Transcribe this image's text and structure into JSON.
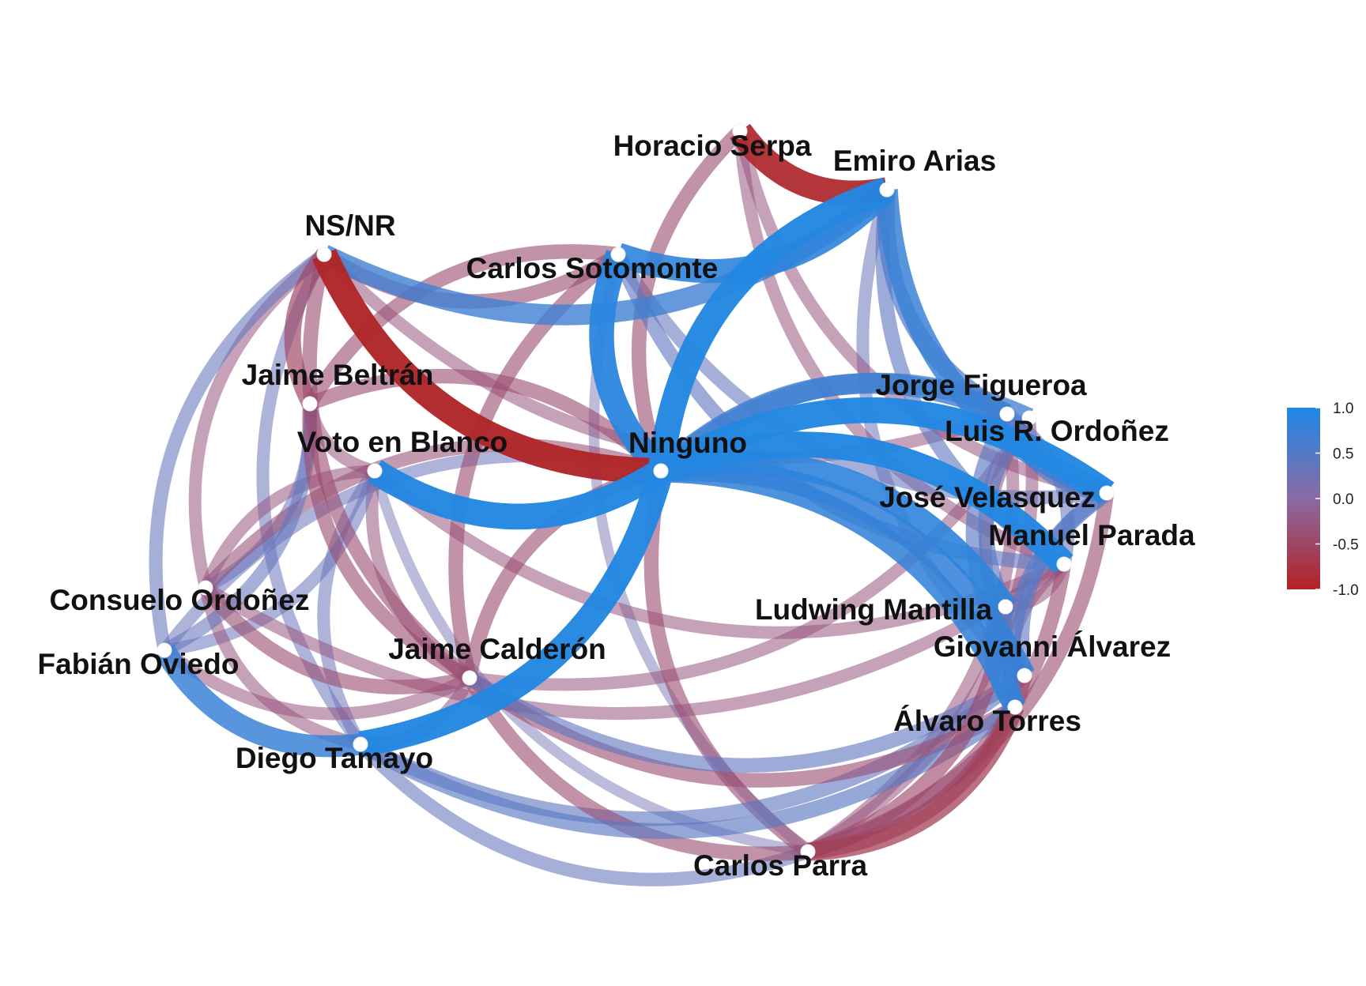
{
  "chart_data": {
    "type": "network",
    "title": "",
    "nodes": [
      {
        "id": "ninguno",
        "label": "Ninguno"
      },
      {
        "id": "nsnr",
        "label": "NS/NR"
      },
      {
        "id": "voto_blanco",
        "label": "Voto en Blanco"
      },
      {
        "id": "jaime_beltran",
        "label": "Jaime Beltrán"
      },
      {
        "id": "carlos_sotomonte",
        "label": "Carlos Sotomonte"
      },
      {
        "id": "horacio_serpa",
        "label": "Horacio Serpa"
      },
      {
        "id": "emiro_arias",
        "label": "Emiro Arias"
      },
      {
        "id": "jorge_figueroa",
        "label": "Jorge Figueroa"
      },
      {
        "id": "luis_ordonez",
        "label": "Luis R. Ordoñez"
      },
      {
        "id": "jose_velasquez",
        "label": "José Velasquez"
      },
      {
        "id": "manuel_parada",
        "label": "Manuel Parada"
      },
      {
        "id": "ludwing_mantilla",
        "label": "Ludwing Mantilla"
      },
      {
        "id": "giovanni_alvarez",
        "label": "Giovanni Álvarez"
      },
      {
        "id": "alvaro_torres",
        "label": "Álvaro Torres"
      },
      {
        "id": "carlos_parra",
        "label": "Carlos Parra"
      },
      {
        "id": "diego_tamayo",
        "label": "Diego Tamayo"
      },
      {
        "id": "jaime_calderon",
        "label": "Jaime Calderón"
      },
      {
        "id": "consuelo_ordonez",
        "label": "Consuelo Ordoñez"
      },
      {
        "id": "fabian_oviedo",
        "label": "Fabián Oviedo"
      }
    ],
    "edges": [
      {
        "source": "nsnr",
        "target": "ninguno",
        "value": -0.95
      },
      {
        "source": "voto_blanco",
        "target": "ninguno",
        "value": 0.95
      },
      {
        "source": "diego_tamayo",
        "target": "ninguno",
        "value": 0.95
      },
      {
        "source": "carlos_sotomonte",
        "target": "ninguno",
        "value": 0.9
      },
      {
        "source": "emiro_arias",
        "target": "ninguno",
        "value": 0.95
      },
      {
        "source": "jose_velasquez",
        "target": "ninguno",
        "value": 0.95
      },
      {
        "source": "manuel_parada",
        "target": "ninguno",
        "value": 0.95
      },
      {
        "source": "ludwing_mantilla",
        "target": "ninguno",
        "value": 0.85
      },
      {
        "source": "giovanni_alvarez",
        "target": "ninguno",
        "value": 0.8
      },
      {
        "source": "alvaro_torres",
        "target": "ninguno",
        "value": 0.8
      },
      {
        "source": "jorge_figueroa",
        "target": "ninguno",
        "value": 0.7
      },
      {
        "source": "luis_ordonez",
        "target": "ninguno",
        "value": 0.65
      },
      {
        "source": "nsnr",
        "target": "emiro_arias",
        "value": 0.7
      },
      {
        "source": "carlos_sotomonte",
        "target": "emiro_arias",
        "value": 0.85
      },
      {
        "source": "horacio_serpa",
        "target": "emiro_arias",
        "value": -0.9
      },
      {
        "source": "emiro_arias",
        "target": "jose_velasquez",
        "value": 0.75
      },
      {
        "source": "emiro_arias",
        "target": "jorge_figueroa",
        "value": 0.55
      },
      {
        "source": "emiro_arias",
        "target": "manuel_parada",
        "value": 0.4
      },
      {
        "source": "emiro_arias",
        "target": "giovanni_alvarez",
        "value": 0.3
      },
      {
        "source": "horacio_serpa",
        "target": "jose_velasquez",
        "value": -0.3
      },
      {
        "source": "horacio_serpa",
        "target": "ninguno",
        "value": -0.4
      },
      {
        "source": "horacio_serpa",
        "target": "manuel_parada",
        "value": -0.3
      },
      {
        "source": "nsnr",
        "target": "carlos_sotomonte",
        "value": -0.4
      },
      {
        "source": "nsnr",
        "target": "fabian_oviedo",
        "value": 0.35
      },
      {
        "source": "nsnr",
        "target": "diego_tamayo",
        "value": 0.3
      },
      {
        "source": "nsnr",
        "target": "jaime_calderon",
        "value": -0.4
      },
      {
        "source": "nsnr",
        "target": "jaime_beltran",
        "value": -0.5
      },
      {
        "source": "nsnr",
        "target": "consuelo_ordonez",
        "value": -0.3
      },
      {
        "source": "nsnr",
        "target": "jorge_figueroa",
        "value": -0.3
      },
      {
        "source": "carlos_sotomonte",
        "target": "jaime_beltran",
        "value": -0.4
      },
      {
        "source": "carlos_sotomonte",
        "target": "carlos_parra",
        "value": 0.2
      },
      {
        "source": "carlos_sotomonte",
        "target": "jaime_calderon",
        "value": -0.4
      },
      {
        "source": "carlos_sotomonte",
        "target": "manuel_parada",
        "value": 0.4
      },
      {
        "source": "carlos_sotomonte",
        "target": "jose_velasquez",
        "value": 0.35
      },
      {
        "source": "ninguno",
        "target": "jaime_beltran",
        "value": -0.4
      },
      {
        "source": "ninguno",
        "target": "consuelo_ordonez",
        "value": -0.35
      },
      {
        "source": "ninguno",
        "target": "jaime_calderon",
        "value": -0.4
      },
      {
        "source": "ninguno",
        "target": "carlos_parra",
        "value": -0.4
      },
      {
        "source": "ninguno",
        "target": "fabian_oviedo",
        "value": 0.3
      },
      {
        "source": "voto_blanco",
        "target": "consuelo_ordonez",
        "value": -0.3
      },
      {
        "source": "voto_blanco",
        "target": "carlos_parra",
        "value": 0.2
      },
      {
        "source": "voto_blanco",
        "target": "manuel_parada",
        "value": -0.3
      },
      {
        "source": "voto_blanco",
        "target": "diego_tamayo",
        "value": 0.3
      },
      {
        "source": "voto_blanco",
        "target": "jaime_calderon",
        "value": -0.3
      },
      {
        "source": "fabian_oviedo",
        "target": "diego_tamayo",
        "value": 0.75
      },
      {
        "source": "fabian_oviedo",
        "target": "jaime_beltran",
        "value": 0.35
      },
      {
        "source": "fabian_oviedo",
        "target": "jaime_calderon",
        "value": -0.3
      },
      {
        "source": "fabian_oviedo",
        "target": "voto_blanco",
        "value": 0.3
      },
      {
        "source": "consuelo_ordonez",
        "target": "diego_tamayo",
        "value": -0.3
      },
      {
        "source": "consuelo_ordonez",
        "target": "jaime_beltran",
        "value": 0.3
      },
      {
        "source": "consuelo_ordonez",
        "target": "jaime_calderon",
        "value": -0.4
      },
      {
        "source": "consuelo_ordonez",
        "target": "manuel_parada",
        "value": -0.3
      },
      {
        "source": "jaime_beltran",
        "target": "jaime_calderon",
        "value": -0.4
      },
      {
        "source": "jaime_beltran",
        "target": "voto_blanco",
        "value": -0.3
      },
      {
        "source": "diego_tamayo",
        "target": "carlos_parra",
        "value": 0.35
      },
      {
        "source": "diego_tamayo",
        "target": "alvaro_torres",
        "value": 0.45
      },
      {
        "source": "diego_tamayo",
        "target": "giovanni_alvarez",
        "value": 0.4
      },
      {
        "source": "diego_tamayo",
        "target": "jaime_calderon",
        "value": -0.3
      },
      {
        "source": "jaime_calderon",
        "target": "carlos_parra",
        "value": -0.4
      },
      {
        "source": "jaime_calderon",
        "target": "alvaro_torres",
        "value": -0.4
      },
      {
        "source": "jaime_calderon",
        "target": "giovanni_alvarez",
        "value": 0.4
      },
      {
        "source": "jaime_calderon",
        "target": "luis_ordonez",
        "value": -0.3
      },
      {
        "source": "carlos_parra",
        "target": "alvaro_torres",
        "value": -0.6
      },
      {
        "source": "carlos_parra",
        "target": "giovanni_alvarez",
        "value": -0.5
      },
      {
        "source": "carlos_parra",
        "target": "manuel_parada",
        "value": -0.4
      },
      {
        "source": "carlos_parra",
        "target": "ludwing_mantilla",
        "value": -0.45
      },
      {
        "source": "carlos_parra",
        "target": "jose_velasquez",
        "value": -0.4
      },
      {
        "source": "carlos_parra",
        "target": "luis_ordonez",
        "value": -0.3
      },
      {
        "source": "carlos_parra",
        "target": "jorge_figueroa",
        "value": -0.3
      },
      {
        "source": "jorge_figueroa",
        "target": "giovanni_alvarez",
        "value": 0.45
      },
      {
        "source": "jorge_figueroa",
        "target": "jose_velasquez",
        "value": 0.5
      },
      {
        "source": "luis_ordonez",
        "target": "ludwing_mantilla",
        "value": 0.45
      },
      {
        "source": "luis_ordonez",
        "target": "giovanni_alvarez",
        "value": -0.3
      },
      {
        "source": "jose_velasquez",
        "target": "alvaro_torres",
        "value": 0.5
      },
      {
        "source": "jose_velasquez",
        "target": "giovanni_alvarez",
        "value": 0.4
      },
      {
        "source": "manuel_parada",
        "target": "alvaro_torres",
        "value": -0.3
      },
      {
        "source": "manuel_parada",
        "target": "jorge_figueroa",
        "value": 0.35
      },
      {
        "source": "ludwing_mantilla",
        "target": "alvaro_torres",
        "value": 0.6
      },
      {
        "source": "ludwing_mantilla",
        "target": "manuel_parada",
        "value": -0.3
      }
    ],
    "legend": {
      "type": "continuous-colorbar",
      "placement": "right",
      "ticks": [
        "1.0",
        "0.5",
        "0.0",
        "-0.5",
        "-1.0"
      ],
      "low_color": "#b22222",
      "mid_color": "#7b68a8",
      "high_color": "#1e88e5"
    },
    "colors": {
      "negative": "#b22222",
      "neutral": "#8a6aa5",
      "positive": "#1e88e5",
      "node_fill": "#ffffff"
    }
  }
}
